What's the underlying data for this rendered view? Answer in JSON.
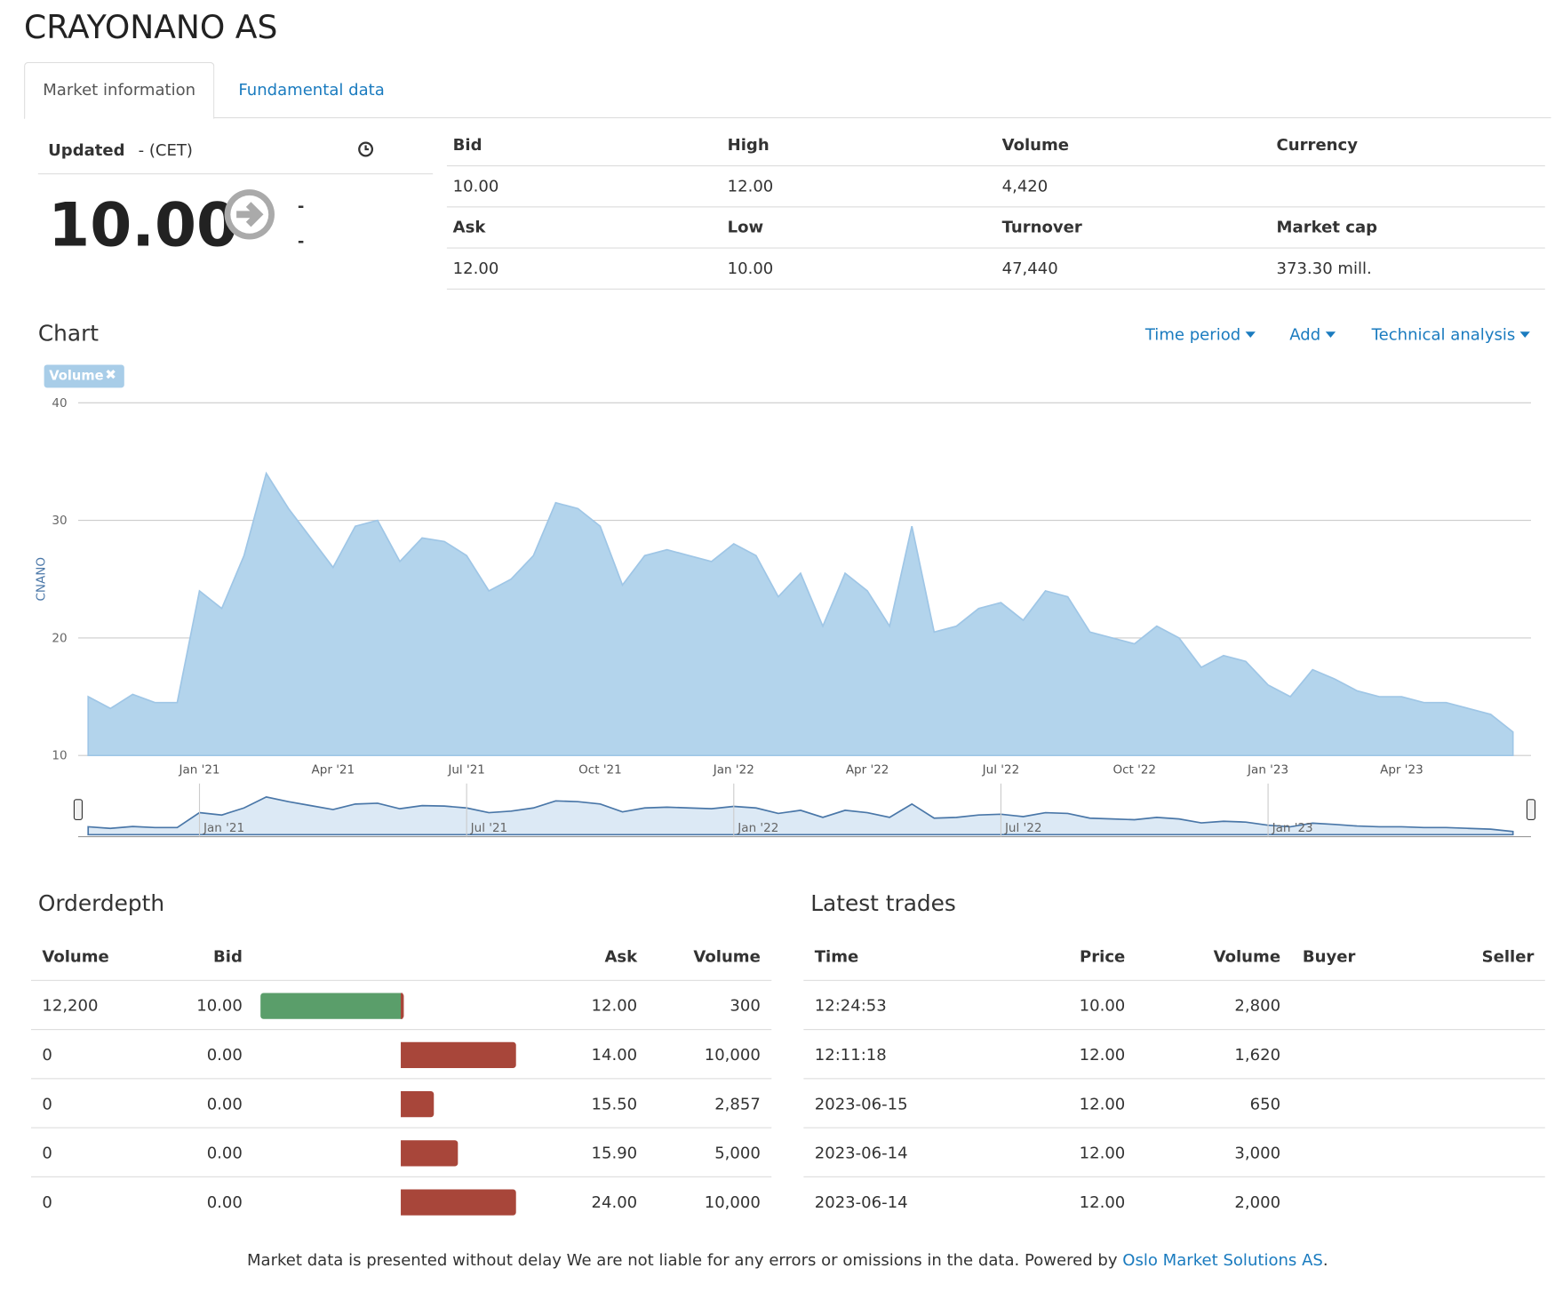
{
  "header": {
    "title": "CRAYONANO AS",
    "tabs": [
      "Market information",
      "Fundamental data"
    ]
  },
  "quote": {
    "updated_label": "Updated",
    "updated_value": "- (CET)",
    "price": "10.00",
    "change": "-",
    "change_pct": "-"
  },
  "stats": {
    "rows": [
      [
        "Bid",
        "High",
        "Volume",
        "Currency"
      ],
      [
        "10.00",
        "12.00",
        "4,420"
      ],
      [
        "Ask",
        "Low",
        "Turnover",
        "Market cap"
      ],
      [
        "12.00",
        "10.00",
        "47,440",
        "373.30 mill."
      ]
    ]
  },
  "chart_section": {
    "title": "Chart",
    "menus": [
      "Time period",
      "Add",
      "Technical analysis"
    ]
  },
  "chart_data": {
    "type": "area",
    "y_label": "CNANO",
    "categories": [
      null,
      null,
      null,
      null,
      null,
      "Jan '21",
      null,
      null,
      null,
      null,
      null,
      "Apr '21",
      null,
      null,
      null,
      null,
      null,
      "Jul '21",
      null,
      null,
      null,
      null,
      null,
      "Oct '21",
      null,
      null,
      null,
      null,
      null,
      "Jan '22",
      null,
      null,
      null,
      null,
      null,
      "Apr '22",
      null,
      null,
      null,
      null,
      null,
      "Jul '22",
      null,
      null,
      null,
      null,
      null,
      "Oct '22",
      null,
      null,
      null,
      null,
      null,
      "Jan '23",
      null,
      null,
      null,
      null,
      null,
      "Apr '23",
      null,
      null,
      null,
      null,
      null
    ],
    "series": [
      {
        "name": "Volume",
        "color": "#b3d4ec",
        "values": [
          15,
          14,
          15.2,
          14.5,
          14.5,
          24,
          22.5,
          27,
          34,
          31,
          28.5,
          26,
          29.5,
          30,
          26.5,
          28.5,
          28.2,
          27,
          24,
          25,
          27,
          31.5,
          31,
          29.5,
          24.5,
          27,
          27.5,
          27,
          26.5,
          28,
          27,
          23.5,
          25.5,
          21,
          25.5,
          24,
          21,
          29.5,
          20.5,
          21,
          22.5,
          23,
          21.5,
          24,
          23.5,
          20.5,
          20,
          19.5,
          21,
          20,
          17.5,
          18.5,
          18,
          16,
          15,
          17.3,
          16.5,
          15.5,
          15,
          15,
          14.5,
          14.5,
          14,
          13.5,
          12
        ]
      }
    ],
    "ylim": [
      10,
      40
    ],
    "yticks": [
      10,
      20,
      30,
      40
    ],
    "grid": true
  },
  "orderdepth": {
    "title": "Orderdepth",
    "headers": [
      "Volume",
      "Bid",
      "Ask",
      "Volume"
    ],
    "rows": [
      [
        "12,200",
        "10.00",
        "12.00",
        "300"
      ],
      [
        "0",
        "0.00",
        "14.00",
        "10,000"
      ],
      [
        "0",
        "0.00",
        "15.50",
        "2,857"
      ],
      [
        "0",
        "0.00",
        "15.90",
        "5,000"
      ],
      [
        "0",
        "0.00",
        "24.00",
        "10,000"
      ]
    ]
  },
  "trades": {
    "title": "Latest trades",
    "headers": [
      "Time",
      "Price",
      "Volume",
      "Buyer",
      "Seller"
    ],
    "rows": [
      [
        "12:24:53",
        "10.00",
        "2,800"
      ],
      [
        "12:11:18",
        "12.00",
        "1,620"
      ],
      [
        "2023-06-15",
        "12.00",
        "650"
      ],
      [
        "2023-06-14",
        "12.00",
        "3,000"
      ],
      [
        "2023-06-14",
        "12.00",
        "2,000"
      ]
    ]
  },
  "footer": {
    "text": "Market data is presented without delay We are not liable for any errors or omissions in the data. Powered by ",
    "link": "Oslo Market Solutions AS",
    "end": "."
  }
}
